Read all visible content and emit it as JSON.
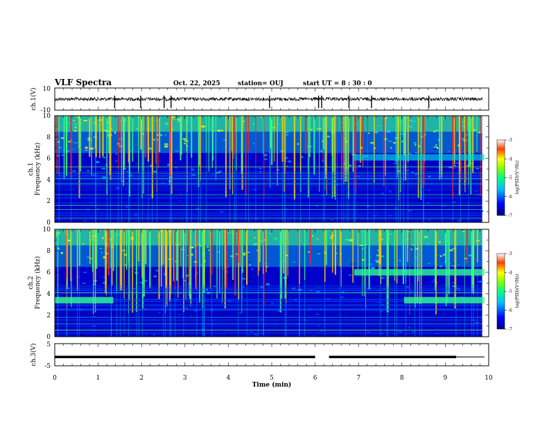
{
  "header": {
    "title": "VLF Spectra",
    "date": "Oct. 22, 2025",
    "station": "station= OUJ",
    "start_ut": "start  UT =   8  : 30 : 0"
  },
  "chart_data": [
    {
      "type": "line",
      "name": "ch1-waveform",
      "ylabel": "ch.1(V)",
      "ylim": [
        -10,
        10
      ],
      "y_tick_labels": [
        "10",
        "-10"
      ],
      "xlim": [
        0,
        10
      ],
      "baseline": 0,
      "spike_times_min": [
        1.38,
        1.98,
        2.52,
        2.68,
        4.95,
        6.08,
        6.15,
        6.78,
        7.3,
        8.62
      ]
    },
    {
      "type": "heatmap",
      "name": "ch1-spectrogram",
      "ylabel": "ch.1\nFrequency (kHz)",
      "ylabel_channel": "ch.1",
      "ylabel_freq": "Frequency (kHz)",
      "ylim": [
        0,
        10
      ],
      "y_tick_labels": [
        "0",
        "2",
        "4",
        "6",
        "8",
        "10"
      ],
      "xlim": [
        0,
        10
      ],
      "colorbar": {
        "label": "log(PSD)(V²/Hz)",
        "range": [
          -7,
          -3
        ],
        "tick_labels": [
          "-3",
          "-4",
          "-5",
          "-6",
          "-7"
        ]
      },
      "steady_bands_khz": [
        0.4,
        1.2,
        1.6,
        2.6,
        3.6,
        4.1,
        4.6,
        5.2
      ],
      "hiss_band": {
        "t_start_min": 6.9,
        "t_end_min": 9.9,
        "f_low_khz": 5.8,
        "f_high_khz": 6.4
      }
    },
    {
      "type": "heatmap",
      "name": "ch2-spectrogram",
      "ylabel": "ch.2\nFrequency (kHz)",
      "ylabel_channel": "ch.2",
      "ylabel_freq": "Frequency (kHz)",
      "ylim": [
        0,
        10
      ],
      "y_tick_labels": [
        "0",
        "2",
        "4",
        "6",
        "8",
        "10"
      ],
      "xlim": [
        0,
        10
      ],
      "colorbar": {
        "label": "log(PSD)(V²/Hz)",
        "range": [
          -7,
          -3
        ],
        "tick_labels": [
          "-3",
          "-4",
          "-5",
          "-6",
          "-7"
        ]
      },
      "steady_bands_khz": [
        0.6,
        1.2,
        1.8,
        2.5,
        4.1
      ],
      "band_segments": [
        {
          "t_start_min": 0,
          "t_end_min": 1.35,
          "f_khz": 3.4
        },
        {
          "t_start_min": 8.05,
          "t_end_min": 9.9,
          "f_khz": 3.4
        },
        {
          "t_start_min": 6.9,
          "t_end_min": 9.9,
          "f_khz": 6.0
        }
      ]
    },
    {
      "type": "line",
      "name": "ch3-trigger",
      "ylabel": "ch.3(V)",
      "ylim": [
        -5,
        5
      ],
      "y_tick_labels": [
        "5",
        "-5"
      ],
      "xlim": [
        0,
        10
      ],
      "level": -1,
      "segments_min": [
        [
          0,
          6.0
        ],
        [
          6.32,
          9.25
        ],
        [
          9.25,
          9.9
        ]
      ]
    }
  ],
  "xaxis": {
    "label": "Time (min)",
    "tick_labels": [
      "0",
      "1",
      "2",
      "3",
      "4",
      "5",
      "6",
      "7",
      "8",
      "9",
      "10"
    ],
    "range": [
      0,
      10
    ]
  }
}
